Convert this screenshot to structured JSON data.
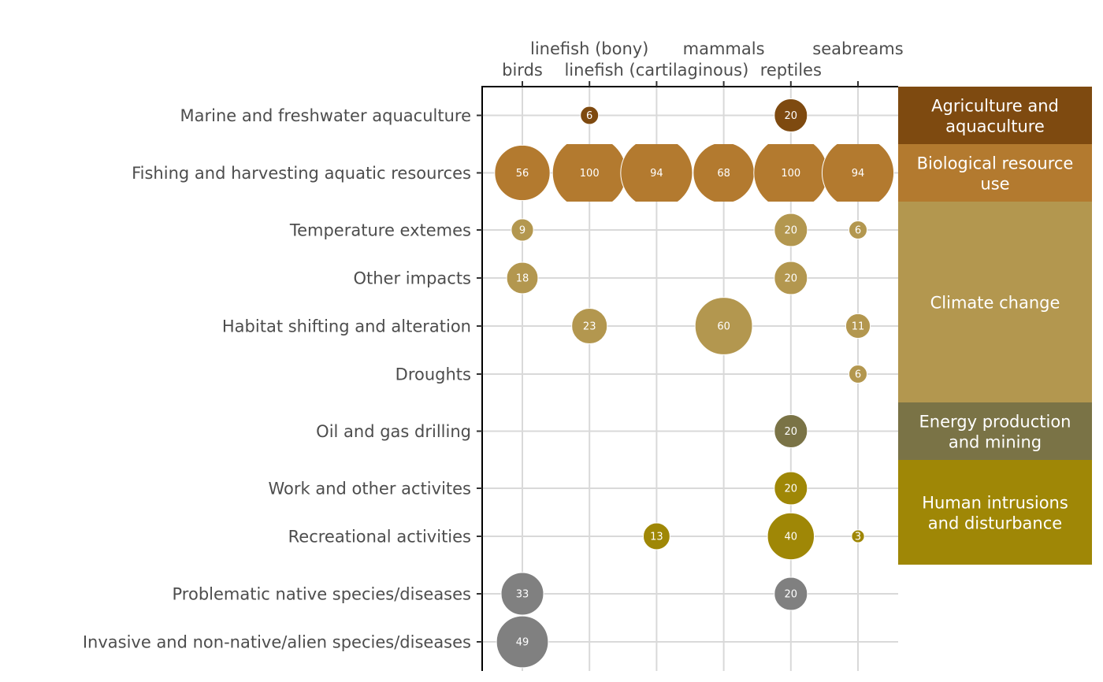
{
  "chart_data": {
    "type": "bubble",
    "x_categories": [
      "birds",
      "linefish (bony)",
      "linefish (cartilaginous)",
      "mammals",
      "reptiles",
      "seabreams"
    ],
    "y_categories": [
      "Marine and freshwater aquaculture",
      "Fishing and harvesting aquatic resources",
      "Temperature extemes",
      "Other impacts",
      "Habitat shifting and alteration",
      "Droughts",
      "Oil and gas drilling",
      "Work and other activites",
      "Recreational activities",
      "Problematic native species/diseases",
      "Invasive and non-native/alien species/diseases"
    ],
    "groups": [
      {
        "name": "Agriculture and aquaculture",
        "lines": [
          "Agriculture and",
          "aquaculture"
        ],
        "color": "#7e4a10",
        "rows": [
          "Marine and freshwater aquaculture"
        ]
      },
      {
        "name": "Biological resource use",
        "lines": [
          "Biological resource",
          "use"
        ],
        "color": "#b37a2f",
        "rows": [
          "Fishing and harvesting aquatic resources"
        ]
      },
      {
        "name": "Climate change",
        "lines": [
          "Climate change"
        ],
        "color": "#b3974f",
        "rows": [
          "Temperature extemes",
          "Other impacts",
          "Habitat shifting and alteration",
          "Droughts"
        ]
      },
      {
        "name": "Energy production and mining",
        "lines": [
          "Energy production",
          "and mining"
        ],
        "color": "#7a7346",
        "rows": [
          "Oil and gas drilling"
        ]
      },
      {
        "name": "Human intrusions and disturbance",
        "lines": [
          "Human intrusions",
          "and disturbance"
        ],
        "color": "#9f8706",
        "rows": [
          "Work and other activites",
          "Recreational activities"
        ]
      },
      {
        "name": "",
        "lines": [],
        "color": "#808080",
        "rows": [
          "Problematic native species/diseases",
          "Invasive and non-native/alien species/diseases"
        ]
      }
    ],
    "points": [
      {
        "y": "Marine and freshwater aquaculture",
        "x": "linefish (bony)",
        "value": 6
      },
      {
        "y": "Marine and freshwater aquaculture",
        "x": "reptiles",
        "value": 20
      },
      {
        "y": "Fishing and harvesting aquatic resources",
        "x": "birds",
        "value": 56
      },
      {
        "y": "Fishing and harvesting aquatic resources",
        "x": "linefish (bony)",
        "value": 100
      },
      {
        "y": "Fishing and harvesting aquatic resources",
        "x": "linefish (cartilaginous)",
        "value": 94
      },
      {
        "y": "Fishing and harvesting aquatic resources",
        "x": "mammals",
        "value": 68
      },
      {
        "y": "Fishing and harvesting aquatic resources",
        "x": "reptiles",
        "value": 100
      },
      {
        "y": "Fishing and harvesting aquatic resources",
        "x": "seabreams",
        "value": 94
      },
      {
        "y": "Temperature extemes",
        "x": "birds",
        "value": 9
      },
      {
        "y": "Temperature extemes",
        "x": "reptiles",
        "value": 20
      },
      {
        "y": "Temperature extemes",
        "x": "seabreams",
        "value": 6
      },
      {
        "y": "Other impacts",
        "x": "birds",
        "value": 18
      },
      {
        "y": "Other impacts",
        "x": "reptiles",
        "value": 20
      },
      {
        "y": "Habitat shifting and alteration",
        "x": "linefish (bony)",
        "value": 23
      },
      {
        "y": "Habitat shifting and alteration",
        "x": "mammals",
        "value": 60
      },
      {
        "y": "Habitat shifting and alteration",
        "x": "seabreams",
        "value": 11
      },
      {
        "y": "Droughts",
        "x": "seabreams",
        "value": 6
      },
      {
        "y": "Oil and gas drilling",
        "x": "reptiles",
        "value": 20
      },
      {
        "y": "Work and other activites",
        "x": "reptiles",
        "value": 20
      },
      {
        "y": "Recreational activities",
        "x": "linefish (cartilaginous)",
        "value": 13
      },
      {
        "y": "Recreational activities",
        "x": "reptiles",
        "value": 40
      },
      {
        "y": "Recreational activities",
        "x": "seabreams",
        "value": 3
      },
      {
        "y": "Problematic native species/diseases",
        "x": "birds",
        "value": 33
      },
      {
        "y": "Problematic native species/diseases",
        "x": "reptiles",
        "value": 20
      },
      {
        "y": "Invasive and non-native/alien species/diseases",
        "x": "birds",
        "value": 49
      }
    ],
    "x_axis_position": "top",
    "grid": true,
    "legend": "none"
  }
}
